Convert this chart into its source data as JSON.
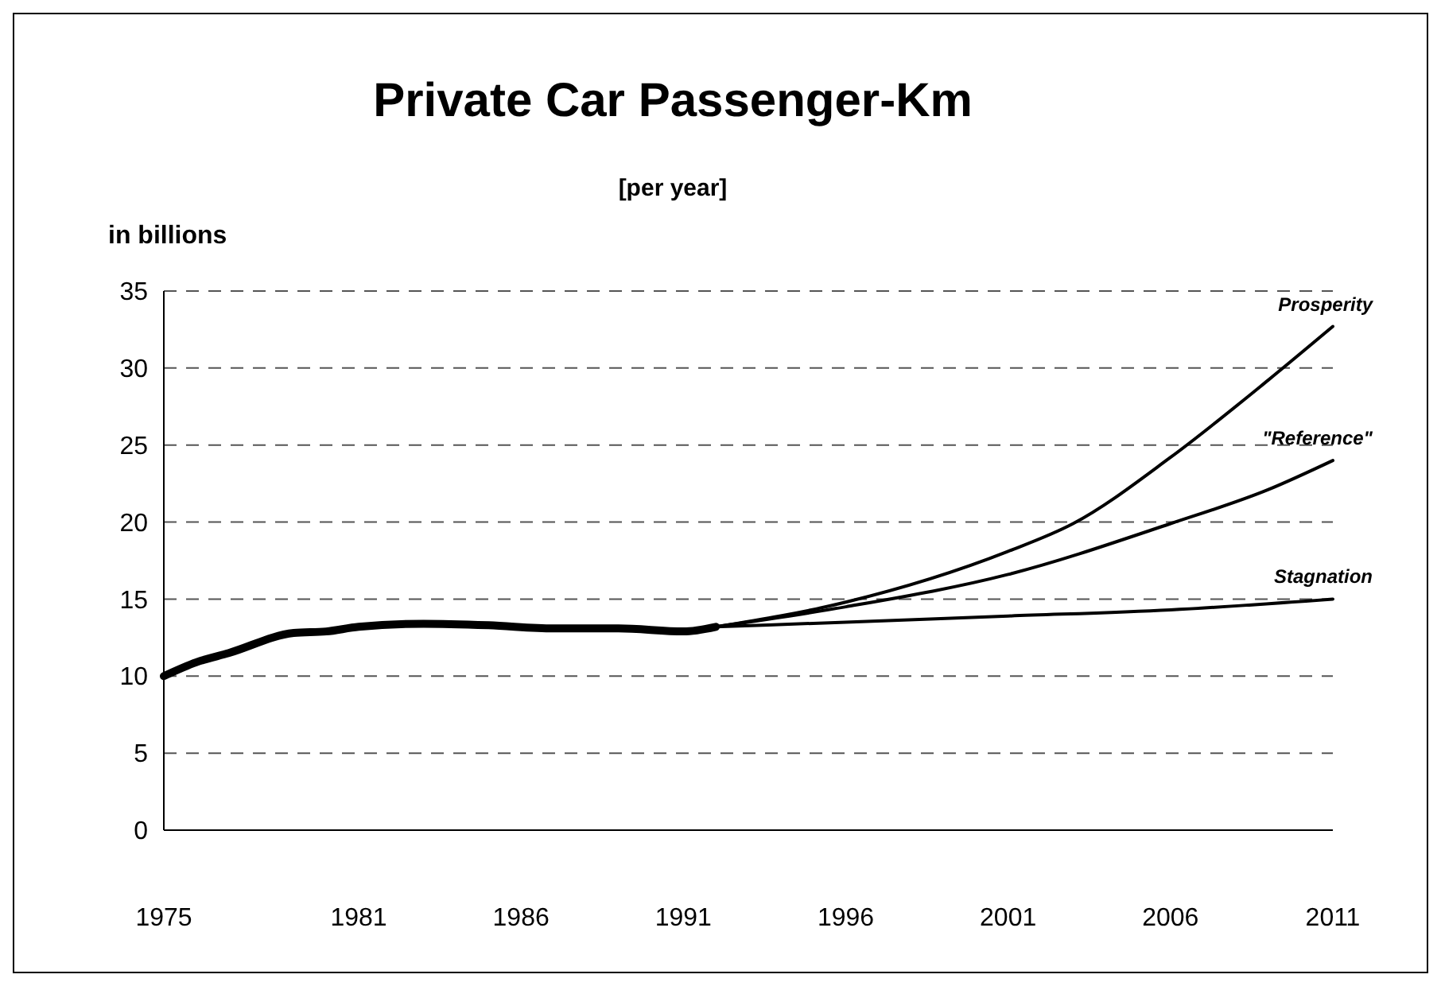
{
  "chart_data": {
    "type": "line",
    "title": "Private Car Passenger-Km",
    "subtitle": "[per year]",
    "ylabel": "in billions",
    "xlim": [
      1975,
      2011
    ],
    "xticks": [
      1975,
      1981,
      1986,
      1991,
      1996,
      2001,
      2006,
      2011
    ],
    "ylim": [
      0,
      35
    ],
    "yticks": [
      0,
      5,
      10,
      15,
      20,
      25,
      30,
      35
    ],
    "grid": "y",
    "line_style": "solid",
    "series": [
      {
        "color": "#000000",
        "x": [
          1975,
          1976,
          1977,
          1979,
          1980,
          1981,
          1983,
          1985,
          1987,
          1989,
          1991,
          1992
        ],
        "values": [
          10,
          10.9,
          11.5,
          12.8,
          12.9,
          13.2,
          13.4,
          13.3,
          13.1,
          13.1,
          12.9,
          13.2
        ]
      },
      {
        "name": "Prosperity",
        "color": "#000000",
        "x": [
          1992,
          1996,
          2001,
          2003,
          2006,
          2009,
          2011
        ],
        "values": [
          13.2,
          14.8,
          18.1,
          19.9,
          24.2,
          29.2,
          32.7
        ]
      },
      {
        "name": "\"Reference\"",
        "color": "#000000",
        "x": [
          1992,
          1996,
          2001,
          2006,
          2009,
          2011
        ],
        "values": [
          13.2,
          14.5,
          16.6,
          19.9,
          22.1,
          24
        ]
      },
      {
        "name": "Stagnation",
        "color": "#000000",
        "x": [
          1992,
          1996,
          2001,
          2006,
          2011
        ],
        "values": [
          13.2,
          13.5,
          13.9,
          14.3,
          15
        ]
      }
    ]
  }
}
